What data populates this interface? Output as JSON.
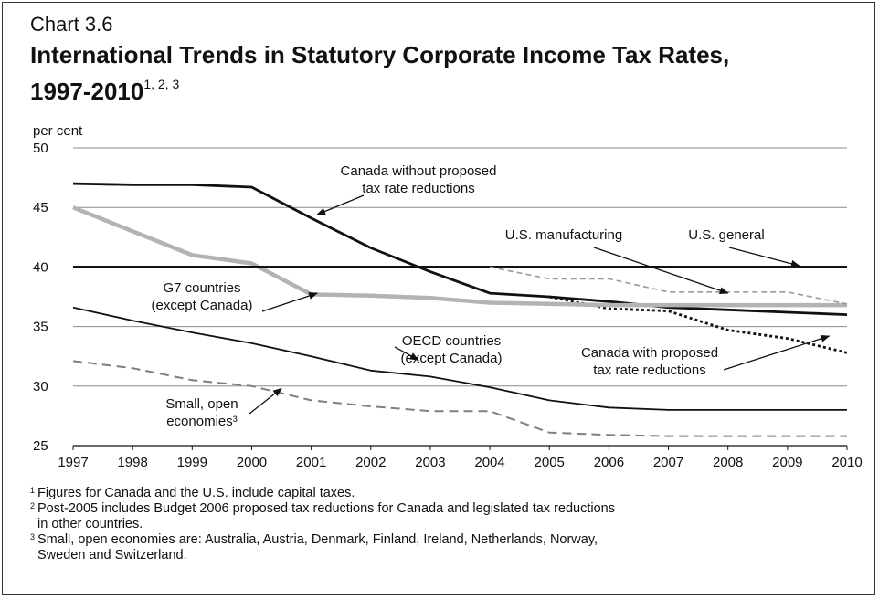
{
  "kicker": "Chart 3.6",
  "title_line1": "International Trends in Statutory Corporate Income Tax Rates,",
  "title_line2": "1997-2010",
  "title_sup": "1, 2, 3",
  "footnotes": [
    {
      "num": "1",
      "text": "Figures for Canada and the U.S. include capital taxes."
    },
    {
      "num": "2",
      "text": "Post-2005 includes Budget 2006 proposed tax reductions for Canada and legislated tax reductions"
    },
    {
      "num": "",
      "text": "in other countries."
    },
    {
      "num": "3",
      "text": "Small, open economies are: Australia, Austria, Denmark, Finland, Ireland, Netherlands, Norway,"
    },
    {
      "num": "",
      "text": "Sweden and Switzerland."
    }
  ],
  "chart_data": {
    "type": "line",
    "ylabel": "per cent",
    "xlabel": "",
    "ylim": [
      25,
      50
    ],
    "yticks": [
      25,
      30,
      35,
      40,
      45,
      50
    ],
    "x": [
      1997,
      1998,
      1999,
      2000,
      2001,
      2002,
      2003,
      2004,
      2005,
      2006,
      2007,
      2008,
      2009,
      2010
    ],
    "grid": true,
    "series": [
      {
        "name": "Canada without proposed tax rate reductions",
        "color": "#111111",
        "style": "solid",
        "width": 2.8,
        "x": [
          1997,
          1998,
          1999,
          2000,
          2001,
          2002,
          2003,
          2004,
          2005,
          2006,
          2007,
          2008,
          2009,
          2010
        ],
        "values": [
          47.0,
          46.9,
          46.9,
          46.7,
          44.1,
          41.6,
          39.6,
          37.8,
          37.5,
          37.1,
          36.6,
          36.4,
          36.2,
          36.0
        ]
      },
      {
        "name": "Canada with proposed tax rate reductions",
        "color": "#111111",
        "style": "dotted",
        "width": 2.8,
        "x": [
          2005,
          2006,
          2007,
          2008,
          2009,
          2010
        ],
        "values": [
          37.5,
          36.5,
          36.3,
          34.7,
          34.0,
          32.8
        ]
      },
      {
        "name": "G7 countries (except Canada)",
        "color": "#b3b3b3",
        "style": "solid",
        "width": 4.5,
        "x": [
          1997,
          1998,
          1999,
          2000,
          2001,
          2002,
          2003,
          2004,
          2005,
          2006,
          2007,
          2008,
          2009,
          2010
        ],
        "values": [
          45.0,
          43.0,
          41.0,
          40.3,
          37.7,
          37.6,
          37.4,
          37.0,
          36.9,
          36.8,
          36.8,
          36.8,
          36.8,
          36.8
        ]
      },
      {
        "name": "U.S. general",
        "color": "#111111",
        "style": "solid",
        "width": 2.8,
        "x": [
          1997,
          2010
        ],
        "values": [
          40.0,
          40.0
        ]
      },
      {
        "name": "U.S. manufacturing",
        "color": "#999999",
        "style": "dashed-fine",
        "width": 1.6,
        "x": [
          2004,
          2005,
          2006,
          2007,
          2008,
          2009,
          2010
        ],
        "values": [
          40.0,
          39.0,
          39.0,
          37.9,
          37.9,
          37.9,
          36.9
        ]
      },
      {
        "name": "OECD countries (except Canada)",
        "color": "#111111",
        "style": "solid",
        "width": 1.8,
        "x": [
          1997,
          1998,
          1999,
          2000,
          2001,
          2002,
          2003,
          2004,
          2005,
          2006,
          2007,
          2008,
          2009,
          2010
        ],
        "values": [
          36.6,
          35.5,
          34.5,
          33.6,
          32.5,
          31.3,
          30.8,
          29.9,
          28.8,
          28.2,
          28.0,
          28.0,
          28.0,
          28.0
        ]
      },
      {
        "name": "Small, open economies",
        "color": "#7f7f7f",
        "style": "dashed",
        "width": 2.0,
        "x": [
          1997,
          1998,
          1999,
          2000,
          2001,
          2002,
          2003,
          2004,
          2005,
          2006,
          2007,
          2008,
          2009,
          2010
        ],
        "values": [
          32.1,
          31.5,
          30.5,
          30.0,
          28.8,
          28.3,
          27.9,
          27.9,
          26.1,
          25.9,
          25.8,
          25.8,
          25.8,
          25.8
        ]
      }
    ],
    "annotations": [
      {
        "lines": [
          "Canada without proposed",
          "tax rate reductions"
        ],
        "anchor": "middle",
        "arrow_to": [
          2001.1,
          44.4
        ]
      },
      {
        "lines": [
          "U.S. manufacturing"
        ],
        "anchor": "middle",
        "arrow_to": [
          2008.0,
          37.8
        ]
      },
      {
        "lines": [
          "U.S. general"
        ],
        "anchor": "middle",
        "arrow_to": [
          2009.2,
          40.1
        ]
      },
      {
        "lines": [
          "G7 countries",
          "(except Canada)"
        ],
        "anchor": "middle",
        "arrow_to": [
          2001.1,
          37.8
        ]
      },
      {
        "lines": [
          "OECD countries",
          "(except Canada)"
        ],
        "anchor": "middle",
        "arrow_to": [
          2002.8,
          32.2
        ]
      },
      {
        "lines": [
          "Canada with proposed",
          "tax rate reductions"
        ],
        "anchor": "middle",
        "arrow_to": [
          2009.7,
          34.2
        ]
      },
      {
        "lines": [
          "Small, open",
          "economies³"
        ],
        "anchor": "middle",
        "arrow_to": [
          2000.5,
          29.8
        ]
      }
    ]
  }
}
